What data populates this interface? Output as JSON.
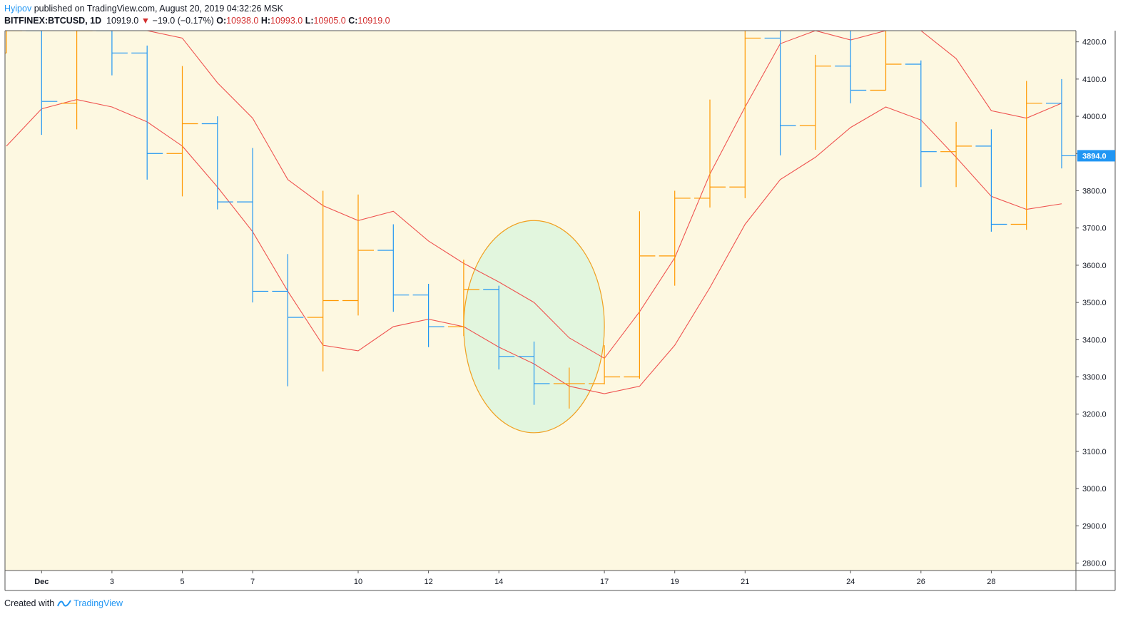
{
  "header": {
    "author": "Hyipov",
    "published": "published on TradingView.com, August 20, 2019 04:32:26 MSK",
    "symbol": "BITFINEX:BTCUSD, 1D",
    "last": "10919.0",
    "change": "−19.0 (−0.17%)",
    "o_label": "O:",
    "o_value": "10938.0",
    "h_label": "H:",
    "h_value": "10993.0",
    "l_label": "L:",
    "l_value": "10905.0",
    "c_label": "C:",
    "c_value": "10919.0"
  },
  "footer": {
    "created_with": "Created with",
    "brand": "TradingView"
  },
  "colors": {
    "background": "#fdf8e1",
    "up_bar": "#ff9800",
    "down_bar": "#2196f3",
    "ma_line": "#ef5350",
    "highlight_fill": "#e2f6de",
    "highlight_stroke": "#f0a020",
    "last_price_bg": "#2196f3"
  },
  "chart_data": {
    "type": "ohlc",
    "title": "BITFINEX:BTCUSD, 1D",
    "ylim": [
      2780,
      4230
    ],
    "y_ticks": [
      "4200.0",
      "4100.0",
      "4000.0",
      "3900.0",
      "3800.0",
      "3700.0",
      "3600.0",
      "3500.0",
      "3400.0",
      "3300.0",
      "3200.0",
      "3100.0",
      "3000.0",
      "2900.0",
      "2800.0"
    ],
    "x_ticks": [
      {
        "i": 1,
        "label": "Dec"
      },
      {
        "i": 3,
        "label": "3"
      },
      {
        "i": 5,
        "label": "5"
      },
      {
        "i": 7,
        "label": "7"
      },
      {
        "i": 10,
        "label": "10"
      },
      {
        "i": 12,
        "label": "12"
      },
      {
        "i": 14,
        "label": "14"
      },
      {
        "i": 17,
        "label": "17"
      },
      {
        "i": 19,
        "label": "19"
      },
      {
        "i": 21,
        "label": "21"
      },
      {
        "i": 24,
        "label": "24"
      },
      {
        "i": 26,
        "label": "26"
      },
      {
        "i": 28,
        "label": "28"
      }
    ],
    "last_price": "3894.0",
    "bars": [
      {
        "o": 4170,
        "h": 4230,
        "l": 4170,
        "c": 4230
      },
      {
        "o": 4230,
        "h": 4230,
        "l": 3950,
        "c": 4040
      },
      {
        "o": 4035,
        "h": 4230,
        "l": 3965,
        "c": 4230
      },
      {
        "o": 4230,
        "h": 4230,
        "l": 4110,
        "c": 4170
      },
      {
        "o": 4170,
        "h": 4190,
        "l": 3830,
        "c": 3900
      },
      {
        "o": 3900,
        "h": 4135,
        "l": 3785,
        "c": 3980
      },
      {
        "o": 3980,
        "h": 4000,
        "l": 3750,
        "c": 3770
      },
      {
        "o": 3770,
        "h": 3915,
        "l": 3500,
        "c": 3530
      },
      {
        "o": 3530,
        "h": 3630,
        "l": 3275,
        "c": 3460
      },
      {
        "o": 3460,
        "h": 3800,
        "l": 3315,
        "c": 3505
      },
      {
        "o": 3505,
        "h": 3790,
        "l": 3465,
        "c": 3640
      },
      {
        "o": 3640,
        "h": 3710,
        "l": 3475,
        "c": 3520
      },
      {
        "o": 3520,
        "h": 3550,
        "l": 3380,
        "c": 3435
      },
      {
        "o": 3435,
        "h": 3615,
        "l": 3410,
        "c": 3535
      },
      {
        "o": 3535,
        "h": 3545,
        "l": 3320,
        "c": 3355
      },
      {
        "o": 3355,
        "h": 3395,
        "l": 3225,
        "c": 3282
      },
      {
        "o": 3282,
        "h": 3325,
        "l": 3215,
        "c": 3282
      },
      {
        "o": 3282,
        "h": 3385,
        "l": 3280,
        "c": 3300
      },
      {
        "o": 3300,
        "h": 3745,
        "l": 3295,
        "c": 3625
      },
      {
        "o": 3625,
        "h": 3800,
        "l": 3545,
        "c": 3780
      },
      {
        "o": 3780,
        "h": 4045,
        "l": 3755,
        "c": 3810
      },
      {
        "o": 3810,
        "h": 4230,
        "l": 3780,
        "c": 4210
      },
      {
        "o": 4210,
        "h": 4230,
        "l": 3895,
        "c": 3975
      },
      {
        "o": 3975,
        "h": 4165,
        "l": 3910,
        "c": 4135
      },
      {
        "o": 4135,
        "h": 4230,
        "l": 4035,
        "c": 4070
      },
      {
        "o": 4070,
        "h": 4230,
        "l": 4070,
        "c": 4140
      },
      {
        "o": 4140,
        "h": 4150,
        "l": 3810,
        "c": 3905
      },
      {
        "o": 3905,
        "h": 3985,
        "l": 3810,
        "c": 3920
      },
      {
        "o": 3920,
        "h": 3965,
        "l": 3690,
        "c": 3710
      },
      {
        "o": 3710,
        "h": 4095,
        "l": 3695,
        "c": 4035
      },
      {
        "o": 4035,
        "h": 4100,
        "l": 3860,
        "c": 3894
      }
    ],
    "series": [
      {
        "values": [
          3920,
          4020,
          4045,
          4025,
          3985,
          3920,
          3810,
          3690,
          3530,
          3385,
          3370,
          3435,
          3455,
          3435,
          3380,
          3335,
          3275,
          3255,
          3275,
          3385,
          3540,
          3710,
          3830,
          3890,
          3970,
          4025,
          3990,
          3890,
          3785,
          3750,
          3765
        ]
      },
      {
        "values": [
          4230,
          4230,
          4230,
          4230,
          4230,
          4210,
          4090,
          3995,
          3830,
          3760,
          3720,
          3745,
          3665,
          3605,
          3555,
          3500,
          3405,
          3350,
          3475,
          3620,
          3845,
          4025,
          4195,
          4230,
          4205,
          4230,
          4230,
          4155,
          4015,
          3995,
          4035
        ]
      }
    ],
    "annotation": {
      "shape": "ellipse",
      "from_bar": 13,
      "to_bar": 17,
      "y_top": 3720,
      "y_bottom": 3150
    }
  }
}
